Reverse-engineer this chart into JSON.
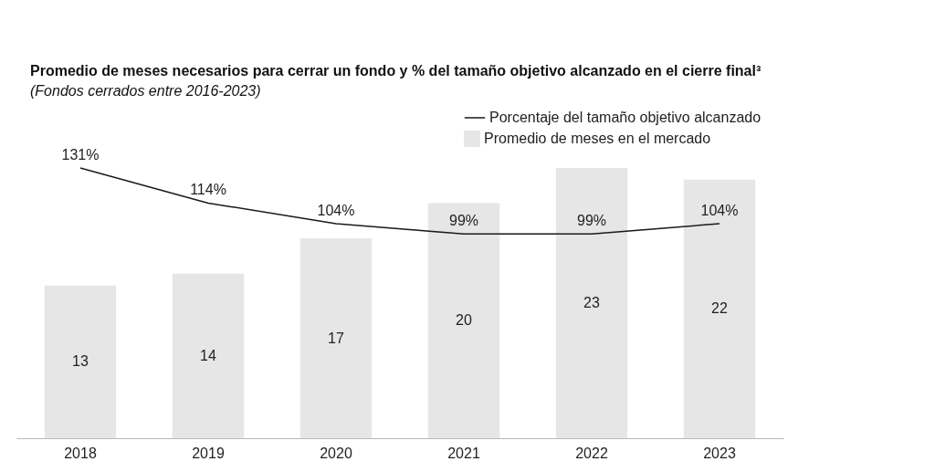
{
  "chart_data": {
    "type": "bar",
    "title": "Promedio de meses necesarios para cerrar un fondo y % del tamaño objetivo alcanzado en el cierre final³",
    "subtitle": "(Fondos cerrados entre 2016-2023)",
    "categories": [
      "2018",
      "2019",
      "2020",
      "2021",
      "2022",
      "2023"
    ],
    "series": [
      {
        "name": "Promedio de meses en el mercado",
        "color": "#e6e6e6",
        "values": [
          13,
          14,
          17,
          20,
          23,
          22
        ]
      },
      {
        "name": "Porcentaje del tamaño objetivo alcanzado",
        "type": "line",
        "axis": "y2",
        "color": "#1a1a1a",
        "values": [
          131,
          114,
          104,
          99,
          99,
          104
        ],
        "value_labels": [
          "131%",
          "114%",
          "104%",
          "99%",
          "99%",
          "104%"
        ]
      }
    ],
    "data_labels": true,
    "tick_labels": "x",
    "grid": false,
    "legend": "top right",
    "marker": "none"
  }
}
